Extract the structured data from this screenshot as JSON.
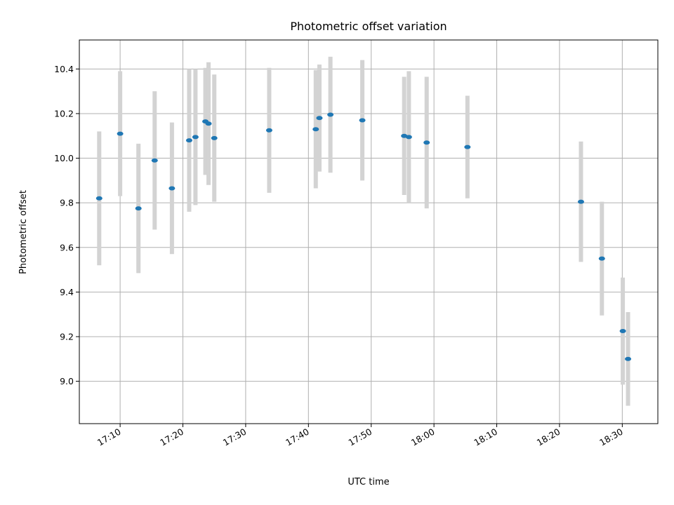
{
  "chart_data": {
    "type": "scatter",
    "title": "Photometric offset variation",
    "xlabel": "UTC time",
    "ylabel": "Photometric offset",
    "grid": true,
    "x_range": [
      "17:03:30",
      "18:35:40"
    ],
    "ylim": [
      8.81,
      10.53
    ],
    "x_ticks": [
      "17:10",
      "17:20",
      "17:30",
      "17:40",
      "17:50",
      "18:00",
      "18:10",
      "18:20",
      "18:30"
    ],
    "y_ticks": [
      9.0,
      9.2,
      9.4,
      9.6,
      9.8,
      10.0,
      10.2,
      10.4
    ],
    "y_tick_labels": [
      "9.0",
      "9.2",
      "9.4",
      "9.6",
      "9.8",
      "10.0",
      "10.2",
      "10.4"
    ],
    "colors": {
      "marker": "#1f77b4",
      "errorbar": "#d3d3d3",
      "grid": "#b0b0b0"
    },
    "points": [
      {
        "x": "17:06:40",
        "y": 9.82,
        "yerr": 0.3
      },
      {
        "x": "17:10:00",
        "y": 10.11,
        "yerr": 0.28
      },
      {
        "x": "17:12:55",
        "y": 9.775,
        "yerr": 0.29
      },
      {
        "x": "17:15:30",
        "y": 9.99,
        "yerr": 0.31
      },
      {
        "x": "17:18:15",
        "y": 9.865,
        "yerr": 0.295
      },
      {
        "x": "17:21:00",
        "y": 10.08,
        "yerr": 0.32
      },
      {
        "x": "17:22:00",
        "y": 10.095,
        "yerr": 0.305
      },
      {
        "x": "17:23:35",
        "y": 10.165,
        "yerr": 0.24
      },
      {
        "x": "17:24:05",
        "y": 10.155,
        "yerr": 0.275
      },
      {
        "x": "17:25:00",
        "y": 10.09,
        "yerr": 0.285
      },
      {
        "x": "17:33:45",
        "y": 10.125,
        "yerr": 0.28
      },
      {
        "x": "17:41:10",
        "y": 10.13,
        "yerr": 0.265
      },
      {
        "x": "17:41:45",
        "y": 10.18,
        "yerr": 0.24
      },
      {
        "x": "17:43:30",
        "y": 10.195,
        "yerr": 0.26
      },
      {
        "x": "17:48:35",
        "y": 10.17,
        "yerr": 0.27
      },
      {
        "x": "17:55:15",
        "y": 10.1,
        "yerr": 0.265
      },
      {
        "x": "17:56:00",
        "y": 10.095,
        "yerr": 0.295
      },
      {
        "x": "17:58:50",
        "y": 10.07,
        "yerr": 0.295
      },
      {
        "x": "18:05:20",
        "y": 10.05,
        "yerr": 0.23
      },
      {
        "x": "18:23:25",
        "y": 9.805,
        "yerr": 0.27
      },
      {
        "x": "18:26:45",
        "y": 9.55,
        "yerr": 0.255
      },
      {
        "x": "18:30:05",
        "y": 9.225,
        "yerr": 0.24
      },
      {
        "x": "18:30:55",
        "y": 9.1,
        "yerr": 0.21
      }
    ]
  }
}
